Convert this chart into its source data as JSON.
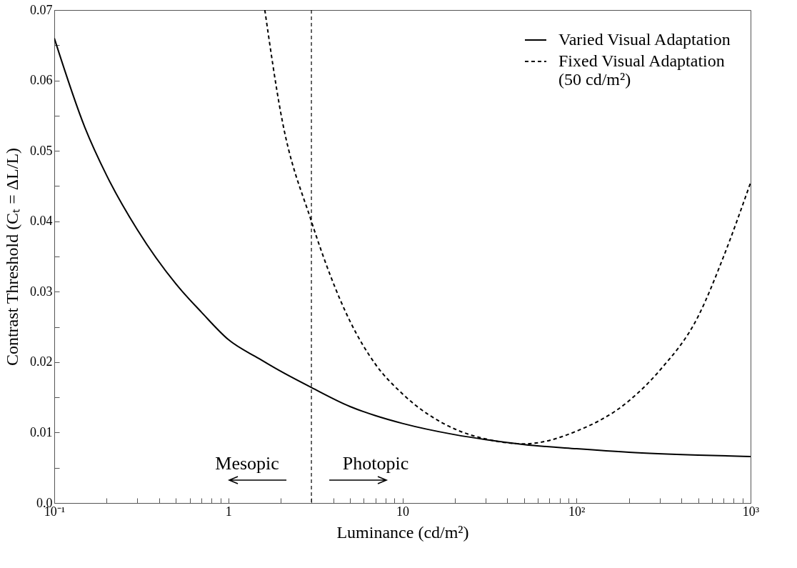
{
  "chart_data": {
    "type": "line",
    "xlabel": "Luminance (cd/m²)",
    "ylabel": "Contrast Threshold (Cₜ = ΔL/L)",
    "log": "x",
    "grid": false,
    "legend": "top right",
    "marker": "none",
    "xlim": [
      0.1,
      1000
    ],
    "ylim": [
      0,
      0.07
    ],
    "xticks": [
      {
        "value": 0.1,
        "label": "10⁻¹"
      },
      {
        "value": 0.2,
        "label": null
      },
      {
        "value": 0.3,
        "label": null
      },
      {
        "value": 0.4,
        "label": null
      },
      {
        "value": 0.5,
        "label": null
      },
      {
        "value": 0.6,
        "label": null
      },
      {
        "value": 0.7,
        "label": null
      },
      {
        "value": 0.8,
        "label": null
      },
      {
        "value": 0.9,
        "label": null
      },
      {
        "value": 1,
        "label": "1"
      },
      {
        "value": 2,
        "label": null
      },
      {
        "value": 3,
        "label": null
      },
      {
        "value": 4,
        "label": null
      },
      {
        "value": 5,
        "label": null
      },
      {
        "value": 6,
        "label": null
      },
      {
        "value": 7,
        "label": null
      },
      {
        "value": 8,
        "label": null
      },
      {
        "value": 9,
        "label": null
      },
      {
        "value": 10,
        "label": "10"
      },
      {
        "value": 20,
        "label": null
      },
      {
        "value": 30,
        "label": null
      },
      {
        "value": 40,
        "label": null
      },
      {
        "value": 50,
        "label": null
      },
      {
        "value": 60,
        "label": null
      },
      {
        "value": 70,
        "label": null
      },
      {
        "value": 80,
        "label": null
      },
      {
        "value": 90,
        "label": null
      },
      {
        "value": 100,
        "label": "10²"
      },
      {
        "value": 200,
        "label": null
      },
      {
        "value": 300,
        "label": null
      },
      {
        "value": 400,
        "label": null
      },
      {
        "value": 500,
        "label": null
      },
      {
        "value": 600,
        "label": null
      },
      {
        "value": 700,
        "label": null
      },
      {
        "value": 800,
        "label": null
      },
      {
        "value": 900,
        "label": null
      },
      {
        "value": 1000,
        "label": "10³"
      }
    ],
    "yticks": [
      {
        "value": 0,
        "label": "0.0"
      },
      {
        "value": 0.005,
        "label": null
      },
      0.01,
      {
        "value": 0.015,
        "label": null
      },
      0.02,
      {
        "value": 0.025,
        "label": null
      },
      0.03,
      {
        "value": 0.035,
        "label": null
      },
      0.04,
      {
        "value": 0.045,
        "label": null
      },
      0.05,
      {
        "value": 0.055,
        "label": null
      },
      0.06,
      {
        "value": 0.065,
        "label": null
      },
      0.07
    ],
    "series": [
      {
        "name": "Varied Visual Adaptation",
        "color": "#000000",
        "line_style": "solid",
        "x": [
          0.1,
          0.15,
          0.2,
          0.3,
          0.5,
          0.7,
          1,
          1.5,
          2,
          3,
          5,
          7,
          10,
          20,
          30,
          50,
          100,
          200,
          500,
          1000
        ],
        "values": [
          0.066,
          0.0533,
          0.0465,
          0.0388,
          0.0311,
          0.0271,
          0.0232,
          0.0205,
          0.0187,
          0.0164,
          0.0137,
          0.0124,
          0.0113,
          0.0097,
          0.009,
          0.0083,
          0.0077,
          0.0072,
          0.0068,
          0.0066
        ]
      },
      {
        "name": "Fixed Visual Adaptation (50 cd/m²)",
        "color": "#000000",
        "line_style": "dashed",
        "x": [
          1.62,
          2,
          3,
          5,
          7,
          10,
          20,
          30,
          50,
          100,
          200,
          300,
          500,
          700,
          1000
        ],
        "values": [
          0.07,
          0.0554,
          0.04,
          0.0258,
          0.0197,
          0.0155,
          0.0105,
          0.0091,
          0.0084,
          0.0102,
          0.0145,
          0.0188,
          0.0265,
          0.035,
          0.0455
        ]
      }
    ],
    "ref_lines": [
      {
        "axis": "x",
        "value": 3,
        "line_style": "dashed",
        "color": "#000000"
      }
    ],
    "annotations": [
      "Mesopic",
      "Photopic"
    ]
  }
}
